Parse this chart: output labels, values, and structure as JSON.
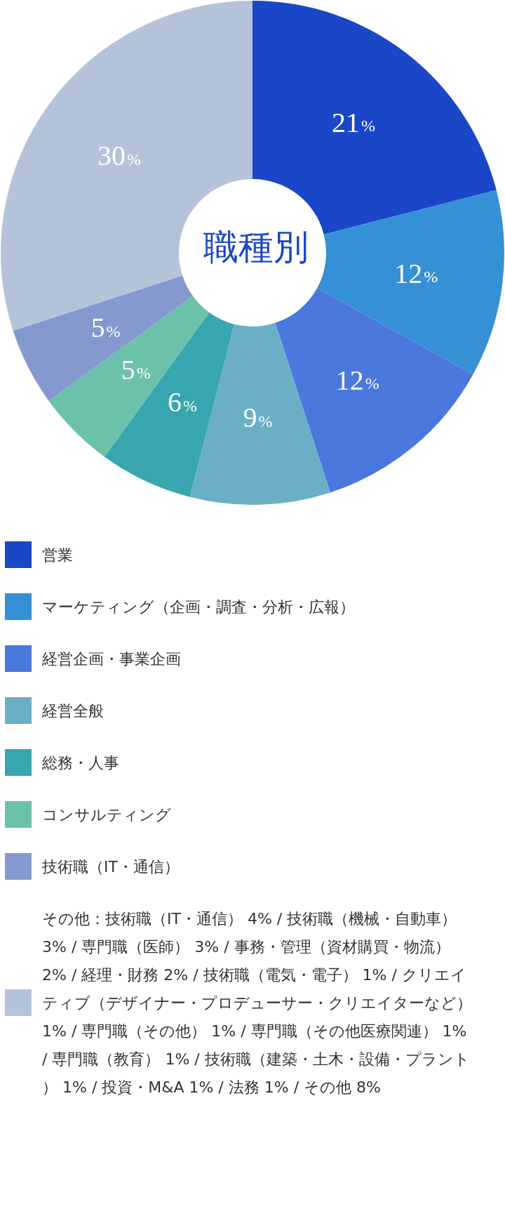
{
  "chart_data": {
    "type": "donut",
    "title": "職種別",
    "categories": [
      "営業",
      "マーケティング（企画・調査・分析・広報）",
      "経営企画・事業企画",
      "経営全般",
      "総務・人事",
      "コンサルティング",
      "技術職（IT・通信）",
      "その他：技術職（IT・通信） 4% / 技術職（機械・自動車） 3% / 専門職（医師） 3% / 事務・管理（資材購買・物流） 2% / 経理・財務 2% / 技術職（電気・電子） 1% / クリエイティブ（デザイナー・プロデューサー・クリエイターなど） 1% / 専門職（その他） 1% / 専門職（その他医療関連） 1% / 専門職（教育） 1% / 技術職（建築・土木・設備・プラント） 1% / 投資・M&A 1% / 法務 1% / その他 8%"
    ],
    "values": [
      21,
      12,
      12,
      9,
      6,
      5,
      5,
      30
    ],
    "value_labels": [
      "21%",
      "12%",
      "12%",
      "9%",
      "6%",
      "5%",
      "5%",
      "30%"
    ],
    "colors": [
      "#1a47c8",
      "#3590d5",
      "#4a78dc",
      "#6aafc6",
      "#37a6ae",
      "#6cc1ab",
      "#8599cf",
      "#b5c3da"
    ],
    "legend": "bottom"
  }
}
